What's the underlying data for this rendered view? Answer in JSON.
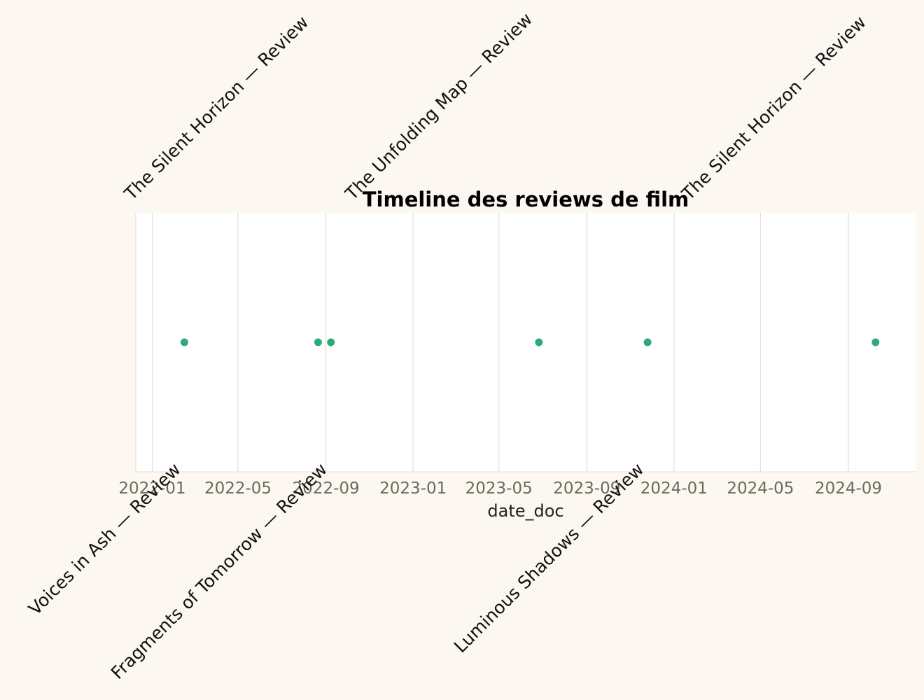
{
  "chart_data": {
    "type": "scatter",
    "title": "Timeline des reviews de film",
    "xlabel": "date_doc",
    "ylabel": "",
    "xlim": [
      "2021-12-09",
      "2024-12-05"
    ],
    "x_ticks": [
      "2022-01",
      "2022-05",
      "2022-09",
      "2023-01",
      "2023-05",
      "2023-09",
      "2024-01",
      "2024-05",
      "2024-09"
    ],
    "grid": "vertical",
    "legend": "none",
    "colors": {
      "point": "#2eaa78",
      "background": "#fcf8f1",
      "plot": "#ffffff",
      "grid": "#e3dfd6"
    },
    "points": [
      {
        "x": "2022-02-15",
        "label": "Voices in Ash — Review",
        "label_side": "below"
      },
      {
        "x": "2022-08-21",
        "label": "The Silent Horizon — Review",
        "label_side": "above"
      },
      {
        "x": "2022-09-08",
        "label": "Fragments of Tomorrow — Review",
        "label_side": "below"
      },
      {
        "x": "2023-06-26",
        "label": "The Unfolding Map — Review",
        "label_side": "above"
      },
      {
        "x": "2023-11-25",
        "label": "Luminous Shadows — Review",
        "label_side": "below"
      },
      {
        "x": "2024-10-09",
        "label": "The Silent Horizon — Review",
        "label_side": "above"
      }
    ]
  }
}
